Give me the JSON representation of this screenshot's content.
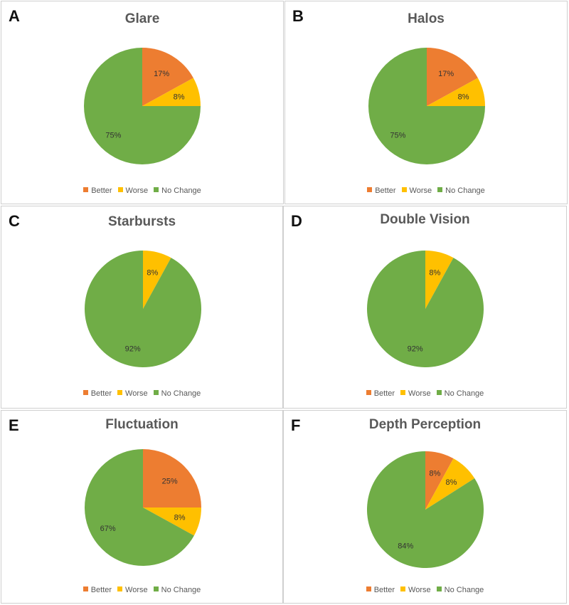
{
  "colors": {
    "Better": "#ED7D31",
    "Worse": "#FFC000",
    "No Change": "#70AD47"
  },
  "chart_data": [
    {
      "type": "pie",
      "panel": "A",
      "title": "Glare",
      "categories": [
        "Better",
        "Worse",
        "No Change"
      ],
      "values": [
        17,
        8,
        75
      ],
      "labels": [
        "17%",
        "8%",
        "75%"
      ],
      "legend": [
        "Better",
        "Worse",
        "No Change"
      ],
      "legend_position": "bottom"
    },
    {
      "type": "pie",
      "panel": "B",
      "title": "Halos",
      "categories": [
        "Better",
        "Worse",
        "No Change"
      ],
      "values": [
        17,
        8,
        75
      ],
      "labels": [
        "17%",
        "8%",
        "75%"
      ],
      "legend": [
        "Better",
        "Worse",
        "No Change"
      ],
      "legend_position": "bottom"
    },
    {
      "type": "pie",
      "panel": "C",
      "title": "Starbursts",
      "categories": [
        "Better",
        "Worse",
        "No Change"
      ],
      "values": [
        0,
        8,
        92
      ],
      "labels": [
        "",
        "8%",
        "92%"
      ],
      "legend": [
        "Better",
        "Worse",
        "No Change"
      ],
      "legend_position": "bottom"
    },
    {
      "type": "pie",
      "panel": "D",
      "title": "Double Vision",
      "categories": [
        "Better",
        "Worse",
        "No Change"
      ],
      "values": [
        0,
        8,
        92
      ],
      "labels": [
        "",
        "8%",
        "92%"
      ],
      "legend": [
        "Better",
        "Worse",
        "No Change"
      ],
      "legend_position": "bottom"
    },
    {
      "type": "pie",
      "panel": "E",
      "title": "Fluctuation",
      "categories": [
        "Better",
        "Worse",
        "No Change"
      ],
      "values": [
        25,
        8,
        67
      ],
      "labels": [
        "25%",
        "8%",
        "67%"
      ],
      "legend": [
        "Better",
        "Worse",
        "No Change"
      ],
      "legend_position": "bottom"
    },
    {
      "type": "pie",
      "panel": "F",
      "title": "Depth Perception",
      "categories": [
        "Better",
        "Worse",
        "No Change"
      ],
      "values": [
        8,
        8,
        84
      ],
      "labels": [
        "8%",
        "8%",
        "84%"
      ],
      "legend": [
        "Better",
        "Worse",
        "No Change"
      ],
      "legend_position": "bottom"
    }
  ]
}
